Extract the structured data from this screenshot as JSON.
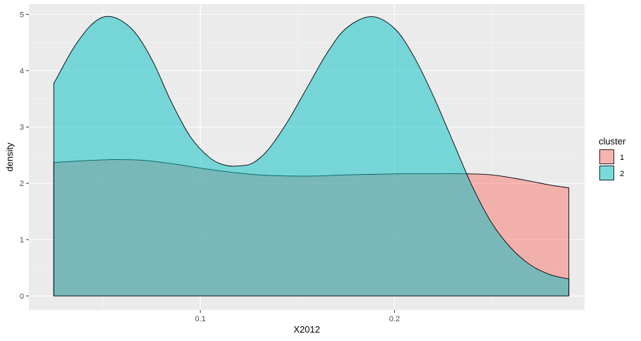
{
  "chart_data": {
    "type": "area",
    "subtype": "density",
    "xlabel": "X2012",
    "ylabel": "density",
    "xlim": [
      0.0117,
      0.2979
    ],
    "ylim": [
      -0.25,
      5.18
    ],
    "x_ticks": [
      0.1,
      0.2
    ],
    "x_tick_labels": [
      "0.1",
      "0.2"
    ],
    "x_minor_ticks": [
      0.05,
      0.15,
      0.25
    ],
    "y_ticks": [
      0,
      1,
      2,
      3,
      4,
      5
    ],
    "y_tick_labels": [
      "0",
      "1",
      "2",
      "3",
      "4",
      "5"
    ],
    "grid": true,
    "legend": {
      "title": "cluster",
      "position": "right"
    },
    "series": [
      {
        "name": "1",
        "color": "#F8766D",
        "x": [
          0.0245,
          0.04,
          0.055,
          0.07,
          0.085,
          0.1,
          0.115,
          0.13,
          0.145,
          0.16,
          0.175,
          0.19,
          0.205,
          0.22,
          0.235,
          0.25,
          0.265,
          0.28,
          0.2898
        ],
        "y": [
          2.37,
          2.4,
          2.42,
          2.41,
          2.35,
          2.27,
          2.2,
          2.15,
          2.13,
          2.13,
          2.15,
          2.16,
          2.17,
          2.17,
          2.17,
          2.15,
          2.07,
          1.97,
          1.92
        ]
      },
      {
        "name": "2",
        "color": "#00BFC4",
        "x": [
          0.0245,
          0.035,
          0.045,
          0.054,
          0.065,
          0.075,
          0.085,
          0.095,
          0.105,
          0.113,
          0.12,
          0.127,
          0.135,
          0.145,
          0.155,
          0.165,
          0.175,
          0.188,
          0.2,
          0.21,
          0.22,
          0.23,
          0.24,
          0.25,
          0.26,
          0.27,
          0.28,
          0.2898
        ],
        "y": [
          3.77,
          4.42,
          4.85,
          4.96,
          4.73,
          4.2,
          3.45,
          2.82,
          2.45,
          2.32,
          2.31,
          2.36,
          2.6,
          3.1,
          3.7,
          4.3,
          4.75,
          4.96,
          4.75,
          4.25,
          3.55,
          2.75,
          1.95,
          1.3,
          0.85,
          0.55,
          0.38,
          0.3
        ]
      }
    ]
  }
}
